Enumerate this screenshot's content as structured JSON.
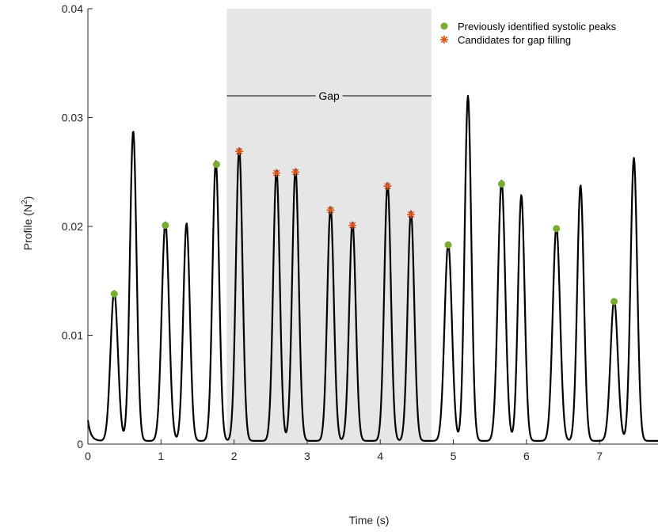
{
  "chart_data": {
    "type": "line",
    "xlabel": "Time (s)",
    "ylabel_main": "Profile (N",
    "ylabel_sup": "2",
    "ylabel_close": ")",
    "xlim": [
      0,
      7.8
    ],
    "ylim": [
      0,
      0.04
    ],
    "xticks": [
      0,
      1,
      2,
      3,
      4,
      5,
      6,
      7
    ],
    "xtick_labels": [
      "0",
      "1",
      "2",
      "3",
      "4",
      "5",
      "6",
      "7"
    ],
    "yticks": [
      0,
      0.01,
      0.02,
      0.03,
      0.04
    ],
    "ytick_labels": [
      "0",
      "0.01",
      "0.02",
      "0.03",
      "0.04"
    ],
    "gap": {
      "x_start": 1.9,
      "x_end": 4.7,
      "label": "Gap",
      "line_y": 0.032,
      "shade_color": "#e6e6e6"
    },
    "legend_position": "top-right",
    "legend": [
      {
        "label": "Previously identified systolic peaks",
        "marker": "circle",
        "color": "#77ac30"
      },
      {
        "label": "Candidates for gap filling",
        "marker": "asterisk",
        "color": "#d95319"
      }
    ],
    "signal_color": "#000000",
    "baseline": [
      [
        0,
        0.0022
      ],
      [
        0.05,
        0.0008
      ],
      [
        0.15,
        0.0005
      ],
      [
        0.25,
        0.0008
      ]
    ],
    "peaks": [
      {
        "t": 0.36,
        "h": 0.0138,
        "w": 0.05
      },
      {
        "t": 0.62,
        "h": 0.0285,
        "w": 0.045
      },
      {
        "t": 1.06,
        "h": 0.0201,
        "w": 0.05
      },
      {
        "t": 1.35,
        "h": 0.02,
        "w": 0.045
      },
      {
        "t": 1.75,
        "h": 0.0257,
        "w": 0.045
      },
      {
        "t": 2.07,
        "h": 0.0269,
        "w": 0.045
      },
      {
        "t": 2.58,
        "h": 0.0249,
        "w": 0.045
      },
      {
        "t": 2.84,
        "h": 0.025,
        "w": 0.045
      },
      {
        "t": 3.32,
        "h": 0.0215,
        "w": 0.045
      },
      {
        "t": 3.62,
        "h": 0.0201,
        "w": 0.045
      },
      {
        "t": 4.1,
        "h": 0.0237,
        "w": 0.045
      },
      {
        "t": 4.42,
        "h": 0.0211,
        "w": 0.045
      },
      {
        "t": 4.93,
        "h": 0.0182,
        "w": 0.05
      },
      {
        "t": 5.2,
        "h": 0.0317,
        "w": 0.045
      },
      {
        "t": 5.66,
        "h": 0.0239,
        "w": 0.05
      },
      {
        "t": 5.93,
        "h": 0.0226,
        "w": 0.045
      },
      {
        "t": 6.41,
        "h": 0.0197,
        "w": 0.05
      },
      {
        "t": 6.74,
        "h": 0.0235,
        "w": 0.045
      },
      {
        "t": 7.2,
        "h": 0.013,
        "w": 0.05
      },
      {
        "t": 7.47,
        "h": 0.026,
        "w": 0.045
      }
    ],
    "systolic_peaks": [
      {
        "x": 0.36,
        "y": 0.0138
      },
      {
        "x": 1.06,
        "y": 0.0201
      },
      {
        "x": 1.76,
        "y": 0.0257
      },
      {
        "x": 4.93,
        "y": 0.0183
      },
      {
        "x": 5.66,
        "y": 0.0239
      },
      {
        "x": 6.41,
        "y": 0.0198
      },
      {
        "x": 7.2,
        "y": 0.0131
      }
    ],
    "gap_candidates": [
      {
        "x": 2.07,
        "y": 0.0269
      },
      {
        "x": 2.58,
        "y": 0.0249
      },
      {
        "x": 2.84,
        "y": 0.025
      },
      {
        "x": 3.32,
        "y": 0.0215
      },
      {
        "x": 3.62,
        "y": 0.0201
      },
      {
        "x": 4.1,
        "y": 0.0237
      },
      {
        "x": 4.42,
        "y": 0.0211
      }
    ]
  }
}
